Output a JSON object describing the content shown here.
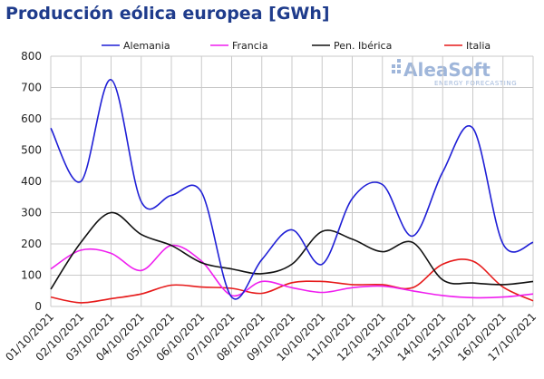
{
  "chart_data": {
    "type": "line",
    "title": "Producción eólica europea [GWh]",
    "categories": [
      "01/10/2021",
      "02/10/2021",
      "03/10/2021",
      "04/10/2021",
      "05/10/2021",
      "06/10/2021",
      "07/10/2021",
      "08/10/2021",
      "09/10/2021",
      "10/10/2021",
      "11/10/2021",
      "12/10/2021",
      "13/10/2021",
      "14/10/2021",
      "15/10/2021",
      "16/10/2021",
      "17/10/2021"
    ],
    "ylim": [
      0,
      800
    ],
    "yticks": [
      0,
      100,
      200,
      300,
      400,
      500,
      600,
      700,
      800
    ],
    "grid": true,
    "legend_position": "top",
    "series": [
      {
        "name": "Alemania",
        "color": "#1f1fd6",
        "values": [
          570,
          400,
          725,
          335,
          355,
          365,
          30,
          150,
          245,
          135,
          345,
          390,
          225,
          430,
          570,
          200,
          205
        ]
      },
      {
        "name": "Francia",
        "color": "#ef1fef",
        "values": [
          120,
          180,
          170,
          115,
          195,
          145,
          35,
          80,
          60,
          45,
          60,
          65,
          50,
          35,
          28,
          30,
          40
        ]
      },
      {
        "name": "Pen. Ibérica",
        "color": "#111111",
        "values": [
          55,
          205,
          300,
          230,
          195,
          140,
          120,
          105,
          135,
          240,
          215,
          175,
          205,
          85,
          75,
          70,
          80
        ]
      },
      {
        "name": "Italia",
        "color": "#e61a1a",
        "values": [
          30,
          12,
          25,
          40,
          68,
          62,
          58,
          42,
          76,
          80,
          70,
          70,
          60,
          135,
          145,
          62,
          18
        ]
      }
    ]
  },
  "logo": {
    "main": "AleaSoft",
    "sub": "ENERGY FORECASTING"
  }
}
